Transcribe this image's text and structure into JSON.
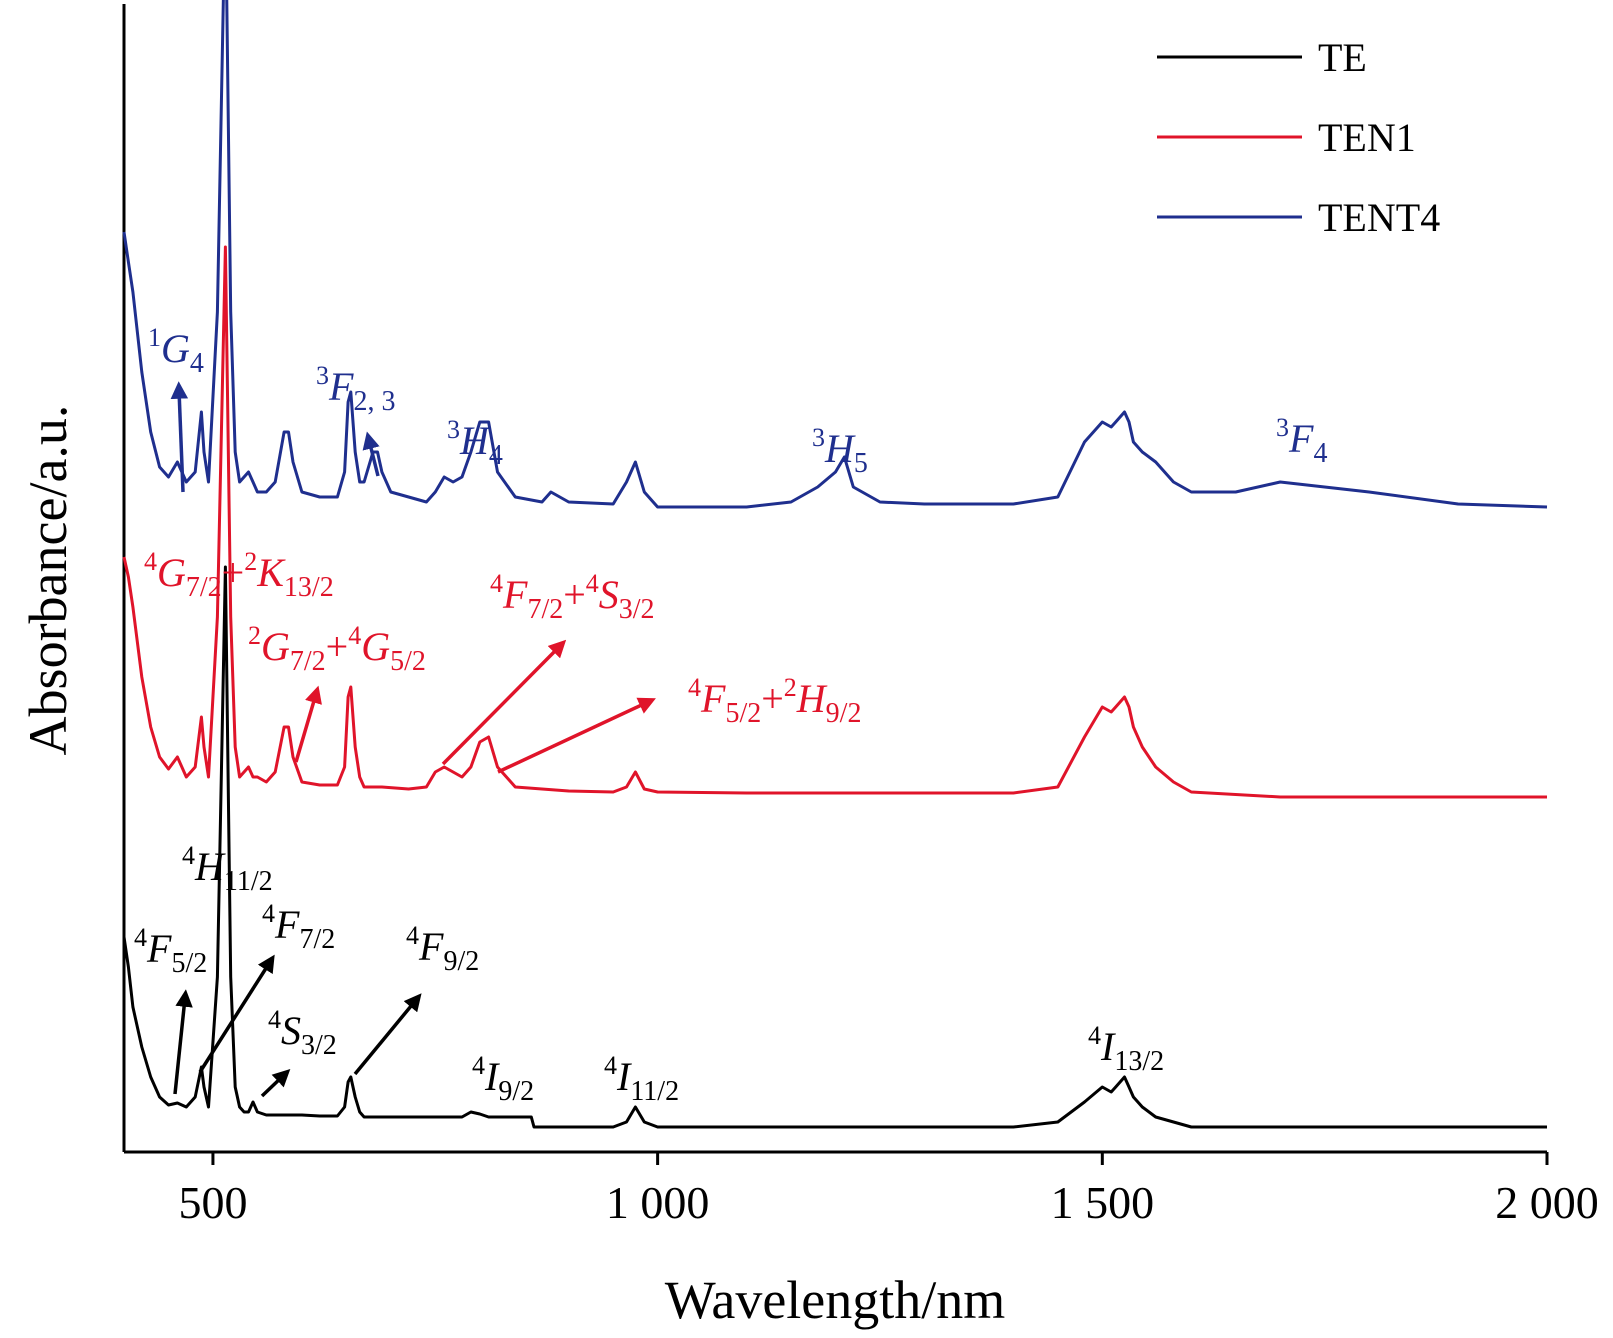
{
  "chart_data": {
    "type": "line",
    "xlabel": "Wavelength/nm",
    "ylabel": "Absorbance/a.u.",
    "xlim": [
      400,
      2000
    ],
    "y_scale": "arbitrary (curves vertically offset)",
    "x_ticks": [
      {
        "value": 500,
        "label": "500"
      },
      {
        "value": 1000,
        "label": "1 000"
      },
      {
        "value": 1500,
        "label": "1 500"
      },
      {
        "value": 2000,
        "label": "2 000"
      }
    ],
    "grid": false,
    "legend_position": "top-right",
    "series": [
      {
        "name": "TE",
        "color": "#000000",
        "x": [
          400,
          405,
          410,
          420,
          430,
          440,
          450,
          460,
          470,
          480,
          487,
          490,
          495,
          505,
          514,
          520,
          525,
          530,
          535,
          540,
          545,
          550,
          560,
          580,
          600,
          620,
          640,
          648,
          652,
          655,
          660,
          665,
          670,
          680,
          700,
          750,
          780,
          790,
          800,
          810,
          820,
          850,
          858,
          861,
          870,
          900,
          950,
          965,
          975,
          985,
          1000,
          1100,
          1200,
          1300,
          1400,
          1450,
          1480,
          1500,
          1510,
          1515,
          1525,
          1530,
          1535,
          1545,
          1560,
          1580,
          1600,
          1700,
          1800,
          1900,
          2000
        ],
        "values": [
          0.19,
          0.16,
          0.12,
          0.08,
          0.05,
          0.03,
          0.022,
          0.024,
          0.02,
          0.03,
          0.06,
          0.04,
          0.02,
          0.15,
          0.56,
          0.15,
          0.04,
          0.02,
          0.015,
          0.015,
          0.025,
          0.015,
          0.012,
          0.012,
          0.012,
          0.011,
          0.011,
          0.02,
          0.045,
          0.05,
          0.03,
          0.015,
          0.01,
          0.01,
          0.01,
          0.01,
          0.01,
          0.015,
          0.013,
          0.01,
          0.01,
          0.01,
          0.01,
          0.0,
          0.0,
          0.0,
          0.0,
          0.005,
          0.02,
          0.005,
          0.0,
          0.0,
          0.0,
          0.0,
          0.0,
          0.005,
          0.025,
          0.04,
          0.035,
          0.04,
          0.05,
          0.04,
          0.03,
          0.02,
          0.01,
          0.005,
          0.0,
          0.0,
          0.0,
          0.0,
          0.0
        ]
      },
      {
        "name": "TEN1",
        "color": "#e0142a",
        "x": [
          400,
          405,
          410,
          420,
          430,
          440,
          450,
          460,
          470,
          480,
          487,
          490,
          495,
          505,
          514,
          520,
          525,
          530,
          540,
          545,
          550,
          560,
          570,
          580,
          585,
          590,
          600,
          620,
          640,
          648,
          652,
          655,
          660,
          665,
          670,
          690,
          720,
          740,
          750,
          760,
          770,
          780,
          790,
          800,
          810,
          820,
          840,
          870,
          900,
          950,
          965,
          975,
          985,
          1000,
          1100,
          1200,
          1300,
          1400,
          1450,
          1480,
          1500,
          1510,
          1515,
          1525,
          1530,
          1535,
          1545,
          1560,
          1580,
          1600,
          1700,
          1800,
          1900,
          2000
        ],
        "values": [
          0.24,
          0.22,
          0.19,
          0.12,
          0.07,
          0.04,
          0.028,
          0.04,
          0.02,
          0.03,
          0.08,
          0.05,
          0.02,
          0.18,
          0.55,
          0.18,
          0.05,
          0.02,
          0.03,
          0.02,
          0.02,
          0.015,
          0.025,
          0.07,
          0.07,
          0.04,
          0.015,
          0.012,
          0.012,
          0.03,
          0.1,
          0.11,
          0.05,
          0.02,
          0.01,
          0.01,
          0.008,
          0.01,
          0.025,
          0.03,
          0.025,
          0.02,
          0.03,
          0.055,
          0.06,
          0.03,
          0.01,
          0.008,
          0.006,
          0.005,
          0.01,
          0.025,
          0.008,
          0.005,
          0.004,
          0.004,
          0.004,
          0.004,
          0.01,
          0.06,
          0.09,
          0.085,
          0.09,
          0.1,
          0.09,
          0.07,
          0.05,
          0.03,
          0.015,
          0.005,
          0.0,
          0.0,
          0.0,
          0.0
        ]
      },
      {
        "name": "TENT4",
        "color": "#1f2f8e",
        "x": [
          400,
          405,
          410,
          420,
          430,
          440,
          450,
          460,
          470,
          480,
          487,
          490,
          495,
          505,
          514,
          520,
          525,
          530,
          540,
          545,
          550,
          560,
          570,
          580,
          585,
          590,
          600,
          620,
          640,
          648,
          652,
          655,
          660,
          665,
          670,
          680,
          685,
          690,
          700,
          720,
          740,
          750,
          760,
          770,
          780,
          790,
          800,
          810,
          820,
          840,
          870,
          880,
          900,
          950,
          965,
          975,
          985,
          1000,
          1100,
          1150,
          1180,
          1200,
          1210,
          1220,
          1250,
          1300,
          1400,
          1450,
          1480,
          1500,
          1510,
          1515,
          1525,
          1530,
          1535,
          1545,
          1560,
          1580,
          1600,
          1650,
          1700,
          1800,
          1900,
          2000
        ],
        "values": [
          0.28,
          0.25,
          0.22,
          0.14,
          0.08,
          0.045,
          0.035,
          0.05,
          0.03,
          0.04,
          0.1,
          0.06,
          0.03,
          0.2,
          0.62,
          0.2,
          0.06,
          0.03,
          0.04,
          0.03,
          0.02,
          0.02,
          0.03,
          0.08,
          0.08,
          0.05,
          0.02,
          0.015,
          0.015,
          0.04,
          0.11,
          0.12,
          0.06,
          0.03,
          0.03,
          0.06,
          0.06,
          0.04,
          0.02,
          0.015,
          0.01,
          0.02,
          0.035,
          0.03,
          0.035,
          0.06,
          0.09,
          0.09,
          0.04,
          0.015,
          0.01,
          0.02,
          0.01,
          0.008,
          0.03,
          0.05,
          0.02,
          0.005,
          0.005,
          0.01,
          0.025,
          0.04,
          0.055,
          0.025,
          0.01,
          0.008,
          0.008,
          0.015,
          0.07,
          0.09,
          0.085,
          0.09,
          0.1,
          0.09,
          0.07,
          0.06,
          0.05,
          0.03,
          0.02,
          0.02,
          0.03,
          0.02,
          0.008,
          0.005
        ]
      }
    ],
    "annotations": [
      {
        "series": "TENT4",
        "text": "1G4",
        "level": "1",
        "term": "G",
        "j": "4"
      },
      {
        "series": "TENT4",
        "text": "3F2, 3",
        "level": "3",
        "term": "F",
        "j": "2, 3"
      },
      {
        "series": "TENT4",
        "text": "3H4",
        "level": "3",
        "term": "H",
        "j": "4"
      },
      {
        "series": "TENT4",
        "text": "3H5",
        "level": "3",
        "term": "H",
        "j": "5"
      },
      {
        "series": "TENT4",
        "text": "3F4",
        "level": "3",
        "term": "F",
        "j": "4"
      },
      {
        "series": "TEN1",
        "text": "4G7/2+2K13/2"
      },
      {
        "series": "TEN1",
        "text": "2G7/2+4G5/2"
      },
      {
        "series": "TEN1",
        "text": "4F7/2+4S3/2"
      },
      {
        "series": "TEN1",
        "text": "4F5/2+2H9/2"
      },
      {
        "series": "TE",
        "text": "4H11/2",
        "level": "4",
        "term": "H",
        "j": "11/2"
      },
      {
        "series": "TE",
        "text": "4F5/2",
        "level": "4",
        "term": "F",
        "j": "5/2"
      },
      {
        "series": "TE",
        "text": "4F7/2",
        "level": "4",
        "term": "F",
        "j": "7/2"
      },
      {
        "series": "TE",
        "text": "4S3/2",
        "level": "4",
        "term": "S",
        "j": "3/2"
      },
      {
        "series": "TE",
        "text": "4F9/2",
        "level": "4",
        "term": "F",
        "j": "9/2"
      },
      {
        "series": "TE",
        "text": "4I9/2",
        "level": "4",
        "term": "I",
        "j": "9/2"
      },
      {
        "series": "TE",
        "text": "4I11/2",
        "level": "4",
        "term": "I",
        "j": "11/2"
      },
      {
        "series": "TE",
        "text": "4I13/2",
        "level": "4",
        "term": "I",
        "j": "13/2"
      }
    ]
  }
}
